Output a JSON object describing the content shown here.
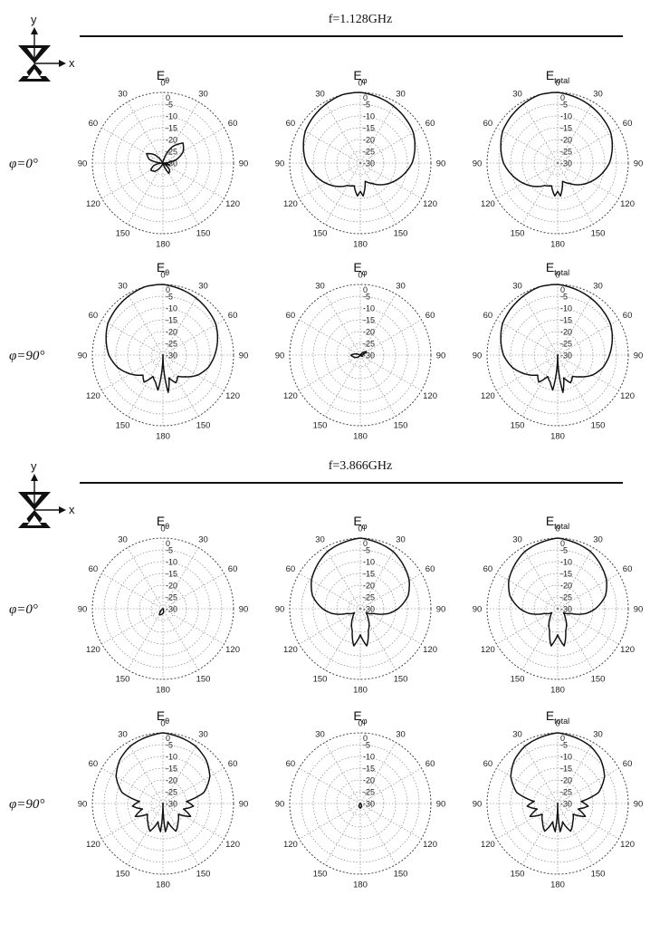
{
  "sections": [
    {
      "freq_label": "f=1.128GHz",
      "rows": [
        {
          "phi_label": "φ=0°",
          "plots": [
            0,
            1,
            2
          ]
        },
        {
          "phi_label": "φ=90°",
          "plots": [
            3,
            4,
            5
          ]
        }
      ]
    },
    {
      "freq_label": "f=3.866GHz",
      "rows": [
        {
          "phi_label": "φ=0°",
          "plots": [
            6,
            7,
            8
          ]
        },
        {
          "phi_label": "φ=90°",
          "plots": [
            9,
            10,
            11
          ]
        }
      ]
    }
  ],
  "coordinate_icon": {
    "x_label": "x",
    "y_label": "y"
  },
  "polar_common": {
    "angle_ticks": [
      "0",
      "30",
      "60",
      "90",
      "120",
      "150",
      "180",
      "150",
      "120",
      "90",
      "60",
      "30"
    ],
    "radial_ticks": [
      "0",
      "-5",
      "-10",
      "-15",
      "-20",
      "-25",
      "-30"
    ],
    "r_range_db": [
      -30,
      0
    ],
    "grid": true
  },
  "chart_data": [
    {
      "type": "polar",
      "title_main": "E",
      "title_sub": "θ",
      "pattern": "tiny_lobes",
      "angles_deg": [
        0,
        15,
        30,
        45,
        60,
        75,
        90,
        105,
        120,
        135,
        150,
        165,
        180,
        195,
        210,
        225,
        240,
        255,
        270,
        285,
        300,
        315,
        330,
        345
      ],
      "values_db": [
        -30,
        -28,
        -22,
        -18,
        -20,
        -24,
        -30,
        -27,
        -30,
        -26,
        -25,
        -30,
        -30,
        -30,
        -28,
        -25,
        -24,
        -26,
        -30,
        -24,
        -22,
        -25,
        -30,
        -30
      ]
    },
    {
      "type": "polar",
      "title_main": "E",
      "title_sub": "φ",
      "pattern": "broad",
      "angles_deg": [
        0,
        15,
        30,
        45,
        60,
        75,
        90,
        105,
        120,
        135,
        150,
        165,
        175,
        180,
        185,
        195,
        210,
        225,
        240,
        255,
        270,
        285,
        300,
        315,
        330,
        345
      ],
      "values_db": [
        0,
        -1,
        -2,
        -3,
        -4,
        -6,
        -8,
        -11,
        -14,
        -17,
        -20,
        -22,
        -16,
        -18,
        -16,
        -20,
        -19,
        -16,
        -13,
        -10,
        -7,
        -5,
        -3,
        -2,
        -1,
        0
      ]
    },
    {
      "type": "polar",
      "title_main": "E",
      "title_sub": "total",
      "pattern": "broad",
      "angles_deg": [
        0,
        15,
        30,
        45,
        60,
        75,
        90,
        105,
        120,
        135,
        150,
        165,
        175,
        180,
        185,
        195,
        210,
        225,
        240,
        255,
        270,
        285,
        300,
        315,
        330,
        345
      ],
      "values_db": [
        0,
        -1,
        -2,
        -3,
        -4,
        -6,
        -8,
        -11,
        -14,
        -17,
        -20,
        -22,
        -16,
        -18,
        -16,
        -20,
        -19,
        -16,
        -13,
        -10,
        -7,
        -5,
        -3,
        -2,
        -1,
        0
      ]
    },
    {
      "type": "polar",
      "title_main": "E",
      "title_sub": "θ",
      "pattern": "broad_lobed",
      "angles_deg": [
        0,
        15,
        30,
        45,
        60,
        75,
        90,
        105,
        120,
        135,
        145,
        155,
        165,
        172,
        180,
        188,
        195,
        205,
        215,
        225,
        240,
        255,
        270,
        285,
        300,
        315,
        330,
        345
      ],
      "values_db": [
        0,
        -1,
        -2,
        -3,
        -4,
        -6,
        -8,
        -10,
        -13,
        -17,
        -19,
        -17,
        -20,
        -14,
        -30,
        -15,
        -18,
        -20,
        -16,
        -18,
        -14,
        -10,
        -7,
        -5,
        -3,
        -2,
        -1,
        0
      ]
    },
    {
      "type": "polar",
      "title_main": "E",
      "title_sub": "φ",
      "pattern": "tiny_lobes",
      "angles_deg": [
        0,
        30,
        60,
        90,
        120,
        150,
        180,
        210,
        240,
        270,
        300,
        330
      ],
      "values_db": [
        -30,
        -30,
        -27,
        -30,
        -29,
        -30,
        -30,
        -30,
        -28,
        -26,
        -30,
        -30
      ]
    },
    {
      "type": "polar",
      "title_main": "E",
      "title_sub": "total",
      "pattern": "broad_lobed",
      "angles_deg": [
        0,
        15,
        30,
        45,
        60,
        75,
        90,
        105,
        120,
        135,
        145,
        155,
        165,
        172,
        180,
        188,
        195,
        205,
        215,
        225,
        240,
        255,
        270,
        285,
        300,
        315,
        330,
        345
      ],
      "values_db": [
        0,
        -1,
        -2,
        -3,
        -4,
        -6,
        -8,
        -10,
        -13,
        -17,
        -19,
        -17,
        -20,
        -14,
        -30,
        -15,
        -18,
        -20,
        -16,
        -18,
        -14,
        -10,
        -7,
        -5,
        -3,
        -2,
        -1,
        0
      ]
    },
    {
      "type": "polar",
      "title_main": "E",
      "title_sub": "θ",
      "pattern": "tiny_lobes",
      "angles_deg": [
        0,
        30,
        60,
        90,
        120,
        150,
        180,
        210,
        240,
        270,
        300,
        330
      ],
      "values_db": [
        -30,
        -30,
        -30,
        -30,
        -30,
        -30,
        -28,
        -27,
        -30,
        -30,
        -30,
        -30
      ]
    },
    {
      "type": "polar",
      "title_main": "E",
      "title_sub": "φ",
      "pattern": "upper_lobe",
      "angles_deg": [
        0,
        15,
        30,
        45,
        60,
        75,
        90,
        100,
        110,
        125,
        140,
        160,
        170,
        180,
        190,
        200,
        220,
        235,
        250,
        260,
        270,
        285,
        300,
        315,
        330,
        345
      ],
      "values_db": [
        0,
        -1,
        -2,
        -4,
        -6,
        -9,
        -14,
        -18,
        -24,
        -27,
        -25,
        -20,
        -14,
        -19,
        -14,
        -20,
        -25,
        -27,
        -24,
        -18,
        -14,
        -9,
        -6,
        -4,
        -2,
        -1
      ]
    },
    {
      "type": "polar",
      "title_main": "E",
      "title_sub": "total",
      "pattern": "upper_lobe",
      "angles_deg": [
        0,
        15,
        30,
        45,
        60,
        75,
        90,
        100,
        110,
        125,
        140,
        160,
        170,
        180,
        190,
        200,
        220,
        235,
        250,
        260,
        270,
        285,
        300,
        315,
        330,
        345
      ],
      "values_db": [
        0,
        -1,
        -2,
        -4,
        -6,
        -9,
        -14,
        -18,
        -24,
        -27,
        -25,
        -20,
        -14,
        -19,
        -14,
        -20,
        -25,
        -27,
        -24,
        -18,
        -14,
        -9,
        -6,
        -4,
        -2,
        -1
      ]
    },
    {
      "type": "polar",
      "title_main": "E",
      "title_sub": "θ",
      "pattern": "upper_lobe_sidelobes",
      "angles_deg": [
        0,
        15,
        30,
        45,
        60,
        75,
        85,
        95,
        105,
        115,
        125,
        140,
        155,
        165,
        175,
        180,
        185,
        195,
        205,
        220,
        235,
        245,
        255,
        265,
        275,
        285,
        300,
        315,
        330,
        345
      ],
      "values_db": [
        0,
        -1,
        -2,
        -4,
        -7,
        -12,
        -20,
        -17,
        -21,
        -17,
        -22,
        -20,
        -17,
        -22,
        -18,
        -30,
        -18,
        -22,
        -17,
        -20,
        -22,
        -17,
        -21,
        -17,
        -20,
        -12,
        -7,
        -4,
        -2,
        -1
      ]
    },
    {
      "type": "polar",
      "title_main": "E",
      "title_sub": "φ",
      "pattern": "tiny_lobes",
      "angles_deg": [
        0,
        30,
        60,
        90,
        120,
        150,
        180,
        210,
        240,
        270,
        300,
        330
      ],
      "values_db": [
        -30,
        -30,
        -30,
        -30,
        -30,
        -29,
        -28,
        -29,
        -30,
        -30,
        -30,
        -30
      ]
    },
    {
      "type": "polar",
      "title_main": "E",
      "title_sub": "total",
      "pattern": "upper_lobe_sidelobes",
      "angles_deg": [
        0,
        15,
        30,
        45,
        60,
        75,
        85,
        95,
        105,
        115,
        125,
        140,
        155,
        165,
        175,
        180,
        185,
        195,
        205,
        220,
        235,
        245,
        255,
        265,
        275,
        285,
        300,
        315,
        330,
        345
      ],
      "values_db": [
        0,
        -1,
        -2,
        -4,
        -7,
        -12,
        -20,
        -17,
        -21,
        -17,
        -22,
        -20,
        -17,
        -22,
        -18,
        -30,
        -18,
        -22,
        -17,
        -20,
        -22,
        -17,
        -21,
        -17,
        -20,
        -12,
        -7,
        -4,
        -2,
        -1
      ]
    }
  ]
}
